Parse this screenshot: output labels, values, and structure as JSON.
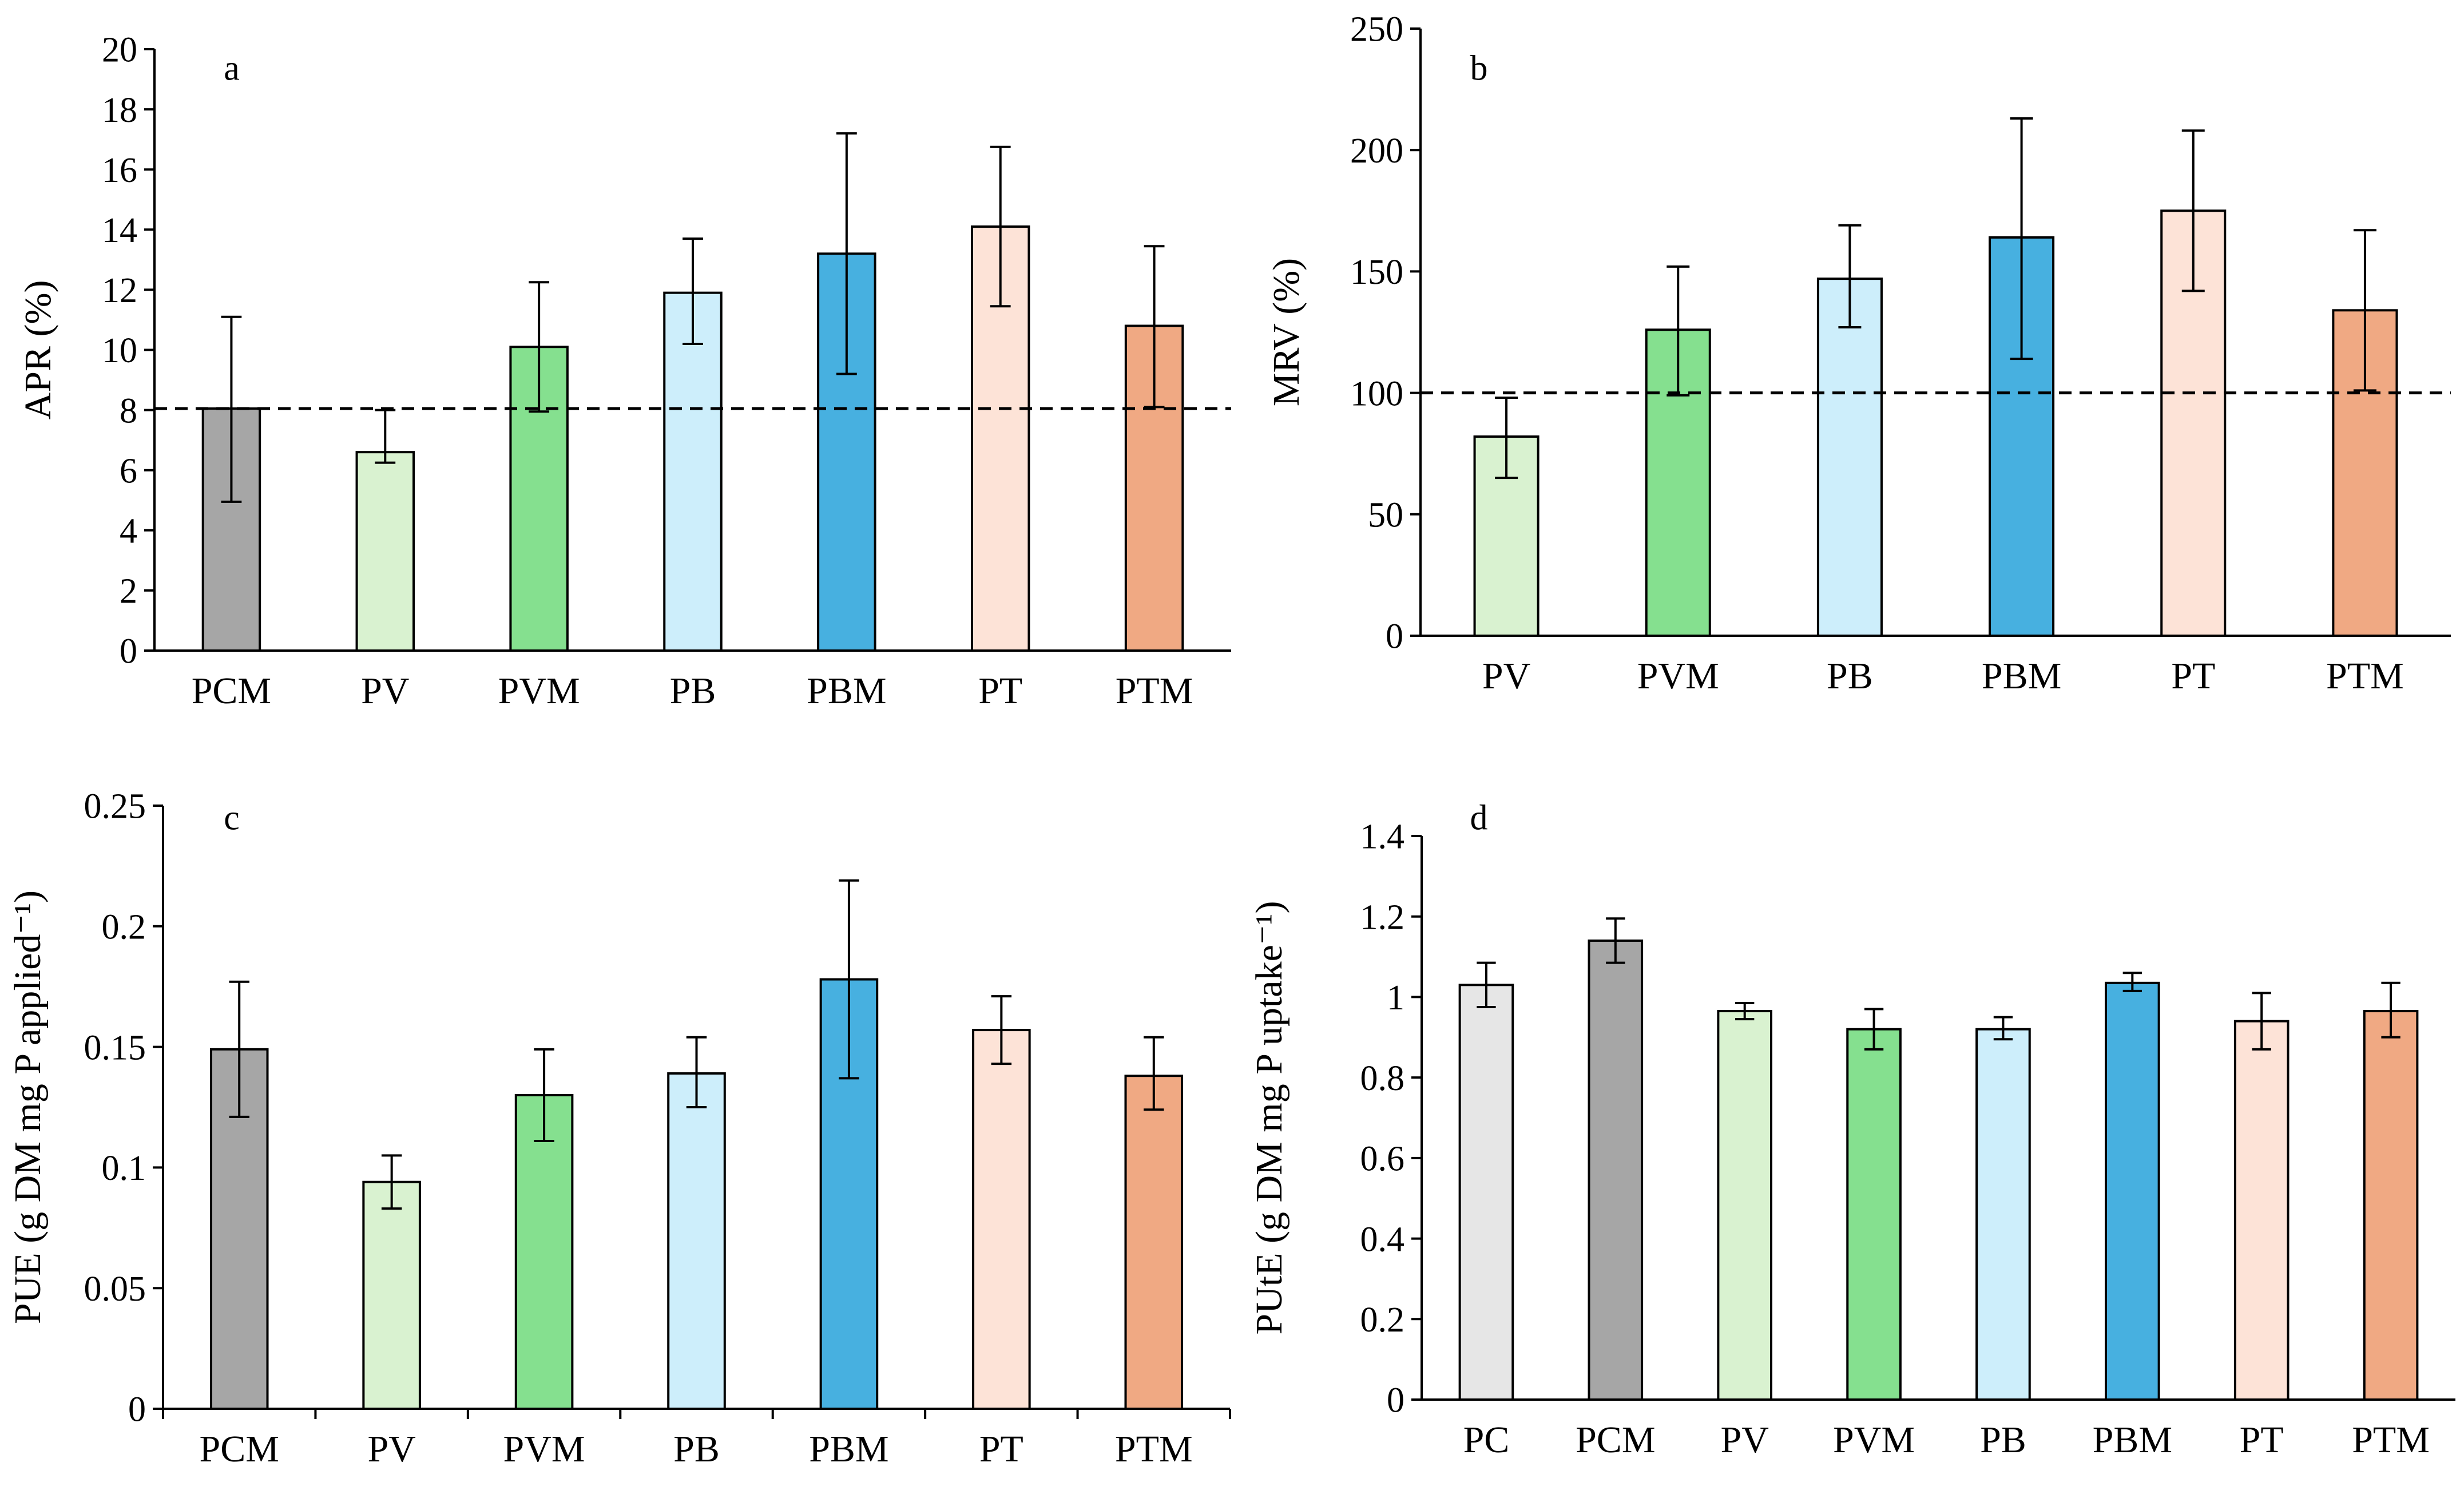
{
  "chart_data": [
    {
      "panel": "a",
      "type": "bar",
      "ylabel": "APR (%)",
      "categories": [
        "PCM",
        "PV",
        "PVM",
        "PB",
        "PBM",
        "PT",
        "PTM"
      ],
      "values": [
        8.05,
        6.6,
        10.1,
        11.9,
        13.2,
        14.1,
        10.8
      ],
      "error_low": [
        4.95,
        6.25,
        7.95,
        10.2,
        9.2,
        11.45,
        8.1
      ],
      "error_high": [
        11.1,
        8.0,
        12.25,
        13.7,
        17.2,
        16.75,
        13.45
      ],
      "colors": [
        "#a6a6a6",
        "#d9f2d0",
        "#85e08f",
        "#cdeefb",
        "#47b0e0",
        "#fde3d7",
        "#f0a983"
      ],
      "reference_line": 8.05,
      "ylim": [
        0,
        20
      ],
      "yticks": [
        "0",
        "2",
        "4",
        "6",
        "8",
        "10",
        "12",
        "14",
        "16",
        "18",
        "20"
      ],
      "xticks_at_categories": false
    },
    {
      "panel": "b",
      "type": "bar",
      "ylabel": "MRV (%)",
      "categories": [
        "PV",
        "PVM",
        "PB",
        "PBM",
        "PT",
        "PTM"
      ],
      "values": [
        82,
        126,
        147,
        164,
        175,
        134
      ],
      "error_low": [
        65,
        99,
        127,
        114,
        142,
        101
      ],
      "error_high": [
        98,
        152,
        169,
        213,
        208,
        167
      ],
      "colors": [
        "#d9f2d0",
        "#85e08f",
        "#cdeefb",
        "#47b0e0",
        "#fde3d7",
        "#f0a983"
      ],
      "reference_line": 100,
      "ylim": [
        0,
        250
      ],
      "yticks": [
        "0",
        "50",
        "100",
        "150",
        "200",
        "250"
      ],
      "xticks_at_categories": false
    },
    {
      "panel": "c",
      "type": "bar",
      "ylabel": "PUE (g DM mg P applied⁻¹)",
      "categories": [
        "PCM",
        "PV",
        "PVM",
        "PB",
        "PBM",
        "PT",
        "PTM"
      ],
      "values": [
        0.149,
        0.094,
        0.13,
        0.139,
        0.178,
        0.157,
        0.138
      ],
      "error_low": [
        0.121,
        0.083,
        0.111,
        0.125,
        0.137,
        0.143,
        0.124
      ],
      "error_high": [
        0.177,
        0.105,
        0.149,
        0.154,
        0.219,
        0.171,
        0.154
      ],
      "colors": [
        "#a6a6a6",
        "#d9f2d0",
        "#85e08f",
        "#cdeefb",
        "#47b0e0",
        "#fde3d7",
        "#f0a983"
      ],
      "reference_line": null,
      "ylim": [
        0,
        0.25
      ],
      "yticks": [
        "0",
        "0.05",
        "0.1",
        "0.15",
        "0.2",
        "0.25"
      ],
      "xticks_at_categories": true
    },
    {
      "panel": "d",
      "type": "bar",
      "ylabel": "PUtE (g DM mg P uptake⁻¹)",
      "categories": [
        "PC",
        "PCM",
        "PV",
        "PVM",
        "PB",
        "PBM",
        "PT",
        "PTM"
      ],
      "values": [
        1.03,
        1.14,
        0.965,
        0.92,
        0.92,
        1.035,
        0.94,
        0.965
      ],
      "error_low": [
        0.975,
        1.085,
        0.945,
        0.87,
        0.895,
        1.015,
        0.87,
        0.9
      ],
      "error_high": [
        1.085,
        1.195,
        0.985,
        0.97,
        0.95,
        1.06,
        1.01,
        1.035
      ],
      "colors": [
        "#e6e6e6",
        "#a6a6a6",
        "#d9f2d0",
        "#85e08f",
        "#cdeefb",
        "#47b0e0",
        "#fde3d7",
        "#f0a983"
      ],
      "reference_line": null,
      "ylim": [
        0,
        1.4
      ],
      "yticks": [
        "0",
        "0.2",
        "0.4",
        "0.6",
        "0.8",
        "1",
        "1.2",
        "1.4"
      ],
      "xticks_at_categories": false
    }
  ]
}
